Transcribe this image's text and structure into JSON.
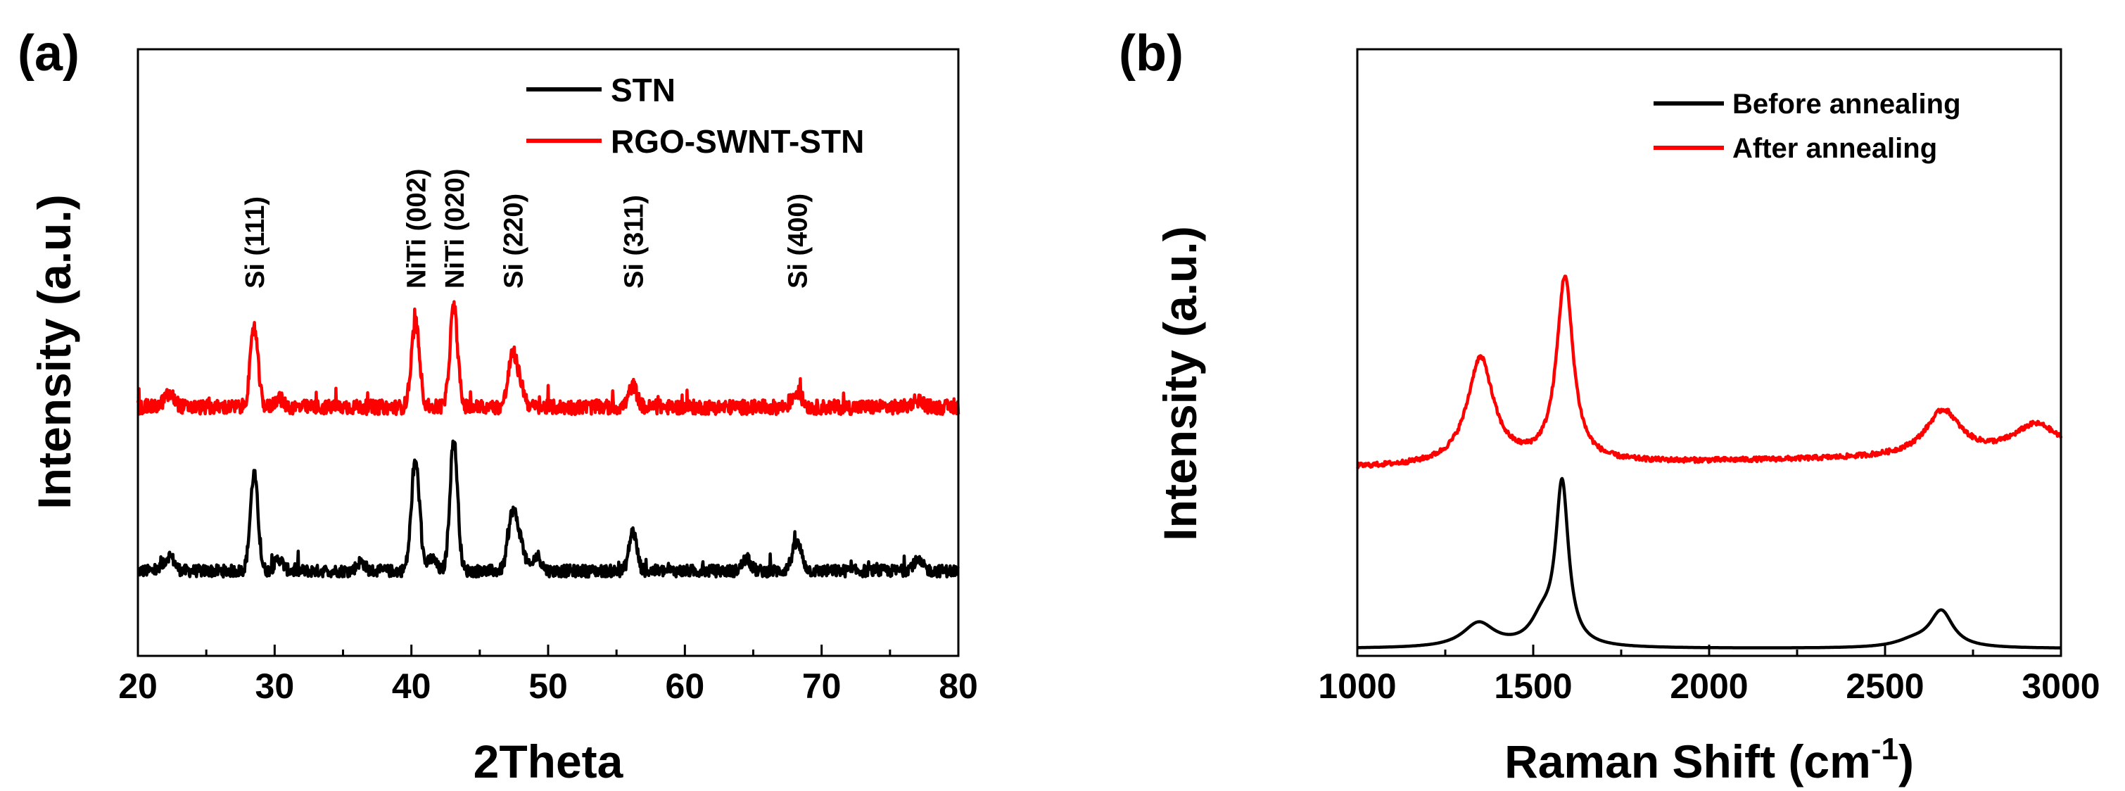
{
  "chart_data": [
    {
      "panel": "(a)",
      "type": "line",
      "title": "",
      "xlabel": "2Theta",
      "ylabel": "Intensity (a.u.)",
      "xlim": [
        20,
        80
      ],
      "ylim": [
        0,
        1
      ],
      "xticks": [
        20,
        30,
        40,
        50,
        60,
        70,
        80
      ],
      "yticks_shown": false,
      "grid": false,
      "legend_position": "top-right",
      "series": [
        {
          "name": "STN",
          "color": "#000000",
          "baseline": 0.14,
          "noise": 0.01,
          "peaks": [
            [
              22.3,
              0.025,
              0.35
            ],
            [
              28.5,
              0.16,
              0.28
            ],
            [
              30.3,
              0.02,
              0.3
            ],
            [
              36.3,
              0.015,
              0.3
            ],
            [
              40.3,
              0.18,
              0.3
            ],
            [
              41.5,
              0.02,
              0.3
            ],
            [
              43.1,
              0.215,
              0.28
            ],
            [
              47.4,
              0.095,
              0.32
            ],
            [
              48.0,
              0.04,
              0.3
            ],
            [
              49.2,
              0.025,
              0.3
            ],
            [
              56.2,
              0.065,
              0.28
            ],
            [
              64.5,
              0.02,
              0.3
            ],
            [
              68.2,
              0.045,
              0.35
            ],
            [
              77.0,
              0.015,
              0.4
            ]
          ],
          "values_description": "baseline + peaks [position, height, width]"
        },
        {
          "name": "RGO-SWNT-STN",
          "color": "#ff0000",
          "baseline": 0.41,
          "noise": 0.012,
          "peaks": [
            [
              22.3,
              0.02,
              0.4
            ],
            [
              28.5,
              0.13,
              0.28
            ],
            [
              30.3,
              0.015,
              0.3
            ],
            [
              40.3,
              0.14,
              0.3
            ],
            [
              43.1,
              0.165,
              0.28
            ],
            [
              47.4,
              0.085,
              0.32
            ],
            [
              48.0,
              0.03,
              0.3
            ],
            [
              56.2,
              0.035,
              0.3
            ],
            [
              68.2,
              0.025,
              0.35
            ],
            [
              77.0,
              0.012,
              0.4
            ]
          ],
          "values_description": "baseline + peaks [position, height, width]"
        }
      ],
      "annotations": [
        {
          "text": "Si (111)",
          "x": 28.5
        },
        {
          "text": "NiTi (002)",
          "x": 40.3
        },
        {
          "text": "NiTi (020)",
          "x": 43.1
        },
        {
          "text": "Si (220)",
          "x": 47.4
        },
        {
          "text": "Si (311)",
          "x": 56.2
        },
        {
          "text": "Si (400)",
          "x": 68.2
        }
      ]
    },
    {
      "panel": "(b)",
      "type": "line",
      "title": "",
      "xlabel": "Raman Shift (cm",
      "xlabel_superscript": "-1",
      "xlabel_suffix": ")",
      "ylabel": "Intensity (a.u.)",
      "xlim": [
        1000,
        3000
      ],
      "ylim": [
        0,
        1
      ],
      "xticks": [
        1000,
        1500,
        2000,
        2500,
        3000
      ],
      "yticks_shown": false,
      "grid": false,
      "legend_position": "top-right",
      "series": [
        {
          "name": "Before annealing",
          "color": "#000000",
          "baseline": 0.012,
          "noise": 0.0,
          "peaks": [
            [
              1345,
              0.04,
              55
            ],
            [
              1582,
              0.265,
              22
            ],
            [
              1525,
              0.04,
              40
            ],
            [
              2660,
              0.06,
              40
            ],
            [
              2580,
              0.01,
              60
            ]
          ],
          "values_description": "baseline + Lorentzian peaks [position, height, half-width]"
        },
        {
          "name": "After annealing",
          "color": "#ff0000",
          "baseline": 0.32,
          "noise": 0.004,
          "peaks": [
            [
              1350,
              0.175,
              45
            ],
            [
              1590,
              0.305,
              28
            ],
            [
              2665,
              0.075,
              60
            ],
            [
              2930,
              0.05,
              80
            ]
          ],
          "values_description": "baseline + Lorentzian peaks [position, height, half-width]"
        }
      ]
    }
  ]
}
